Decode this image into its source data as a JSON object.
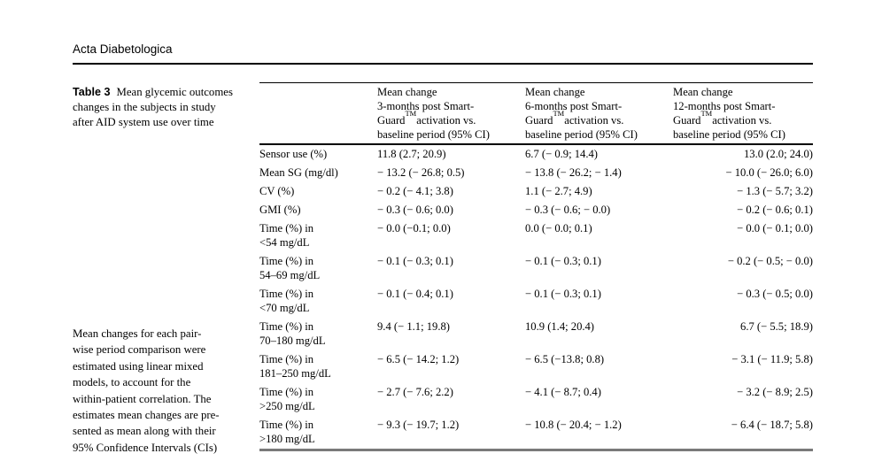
{
  "journal_header": {
    "title": "Acta Diabetologica"
  },
  "table": {
    "caption_label": "Table 3",
    "caption_text": "Mean glycemic outcomes\nchanges in the subjects in study\nafter AID system use over time",
    "footnote": "Mean changes for each pair-\nwise period comparison were\nestimated using linear mixed\nmodels, to account for the\nwithin-patient correlation. The\nestimates mean changes are pre-\nsented as mean along with their\n95% Confidence Intervals (CIs)",
    "columns": [
      {
        "l1": "Mean change",
        "l2": "3-months post Smart-",
        "l3a": "Guard",
        "tm": "TM",
        "l3b": "activation vs.",
        "l4": "baseline period (95% CI)"
      },
      {
        "l1": "Mean change",
        "l2": "6-months post Smart-",
        "l3a": "Guard",
        "tm": "TM",
        "l3b": "activation vs.",
        "l4": "baseline period (95% CI)"
      },
      {
        "l1": "Mean change",
        "l2": "12-months post Smart-",
        "l3a": "Guard",
        "tm": "TM",
        "l3b": "activation vs.",
        "l4": "baseline period (95% CI)"
      }
    ],
    "rows": [
      {
        "label": "Sensor use (%)",
        "m3": "11.8 (2.7; 20.9)",
        "m6": "6.7 (− 0.9; 14.4)",
        "m12": "13.0 (2.0; 24.0)"
      },
      {
        "label": "Mean SG (mg/dl)",
        "m3": "− 13.2 (− 26.8; 0.5)",
        "m6": "− 13.8 (− 26.2; − 1.4)",
        "m12": "− 10.0 (− 26.0; 6.0)"
      },
      {
        "label": "CV (%)",
        "m3": "− 0.2 (− 4.1; 3.8)",
        "m6": "1.1 (− 2.7; 4.9)",
        "m12": "− 1.3 (− 5.7; 3.2)"
      },
      {
        "label": "GMI (%)",
        "m3": "− 0.3 (− 0.6; 0.0)",
        "m6": "− 0.3 (− 0.6; − 0.0)",
        "m12": "− 0.2 (− 0.6; 0.1)"
      },
      {
        "label": "Time (%) in\n<54 mg/dL",
        "m3": "− 0.0 (−0.1; 0.0)",
        "m6": "0.0 (− 0.0; 0.1)",
        "m12": "− 0.0 (− 0.1; 0.0)"
      },
      {
        "label": "Time (%) in\n54–69 mg/dL",
        "m3": "− 0.1 (− 0.3; 0.1)",
        "m6": "− 0.1 (− 0.3; 0.1)",
        "m12": "− 0.2 (− 0.5; − 0.0)"
      },
      {
        "label": "Time (%) in\n<70 mg/dL",
        "m3": "− 0.1 (− 0.4; 0.1)",
        "m6": "− 0.1 (− 0.3; 0.1)",
        "m12": "− 0.3 (− 0.5; 0.0)"
      },
      {
        "label": "Time (%) in\n70–180 mg/dL",
        "m3": "9.4 (− 1.1; 19.8)",
        "m6": "10.9 (1.4; 20.4)",
        "m12": "6.7 (− 5.5; 18.9)"
      },
      {
        "label": "Time (%) in\n181–250 mg/dL",
        "m3": "− 6.5 (− 14.2; 1.2)",
        "m6": "− 6.5 (−13.8; 0.8)",
        "m12": "− 3.1 (− 11.9; 5.8)"
      },
      {
        "label": "Time (%) in\n>250 mg/dL",
        "m3": "− 2.7 (− 7.6; 2.2)",
        "m6": "− 4.1 (− 8.7; 0.4)",
        "m12": "− 3.2 (− 8.9; 2.5)"
      },
      {
        "label": "Time (%) in\n>180 mg/dL",
        "m3": "− 9.3 (− 19.7; 1.2)",
        "m6": "− 10.8 (− 20.4; − 1.2)",
        "m12": "− 6.4 (− 18.7; 5.8)"
      }
    ]
  }
}
